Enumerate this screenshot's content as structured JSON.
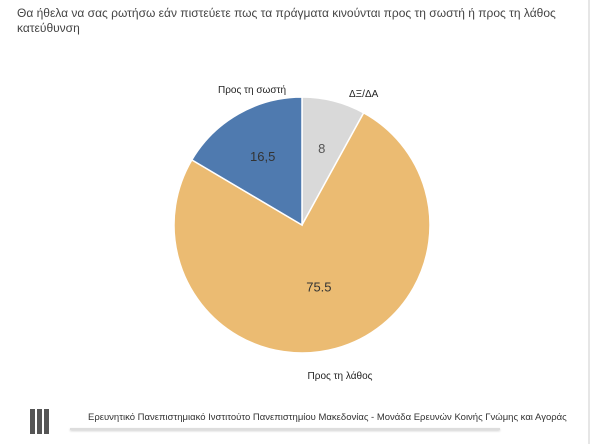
{
  "chart_data": {
    "type": "pie",
    "title": "Θα ήθελα να σας ρωτήσω εάν πιστεύετε πως τα πράγματα κινούνται προς τη σωστή ή προς τη λάθος κατεύθυνση",
    "slices": [
      {
        "label": "ΔΞ/ΔΑ",
        "value": 8,
        "value_label": "8",
        "color": "#d9d9d9"
      },
      {
        "label": "Προς τη λάθος",
        "value": 75.5,
        "value_label": "75.5",
        "color": "#ebbb72"
      },
      {
        "label": "Προς τη σωστή",
        "value": 16.5,
        "value_label": "16,5",
        "color": "#4f7aaf"
      }
    ]
  },
  "footer": "Ερευνητικό Πανεπιστημιακό Ινστιτούτο Πανεπιστημίου Μακεδονίας - Μονάδα Ερευνών Κοινής Γνώμης και Αγοράς"
}
